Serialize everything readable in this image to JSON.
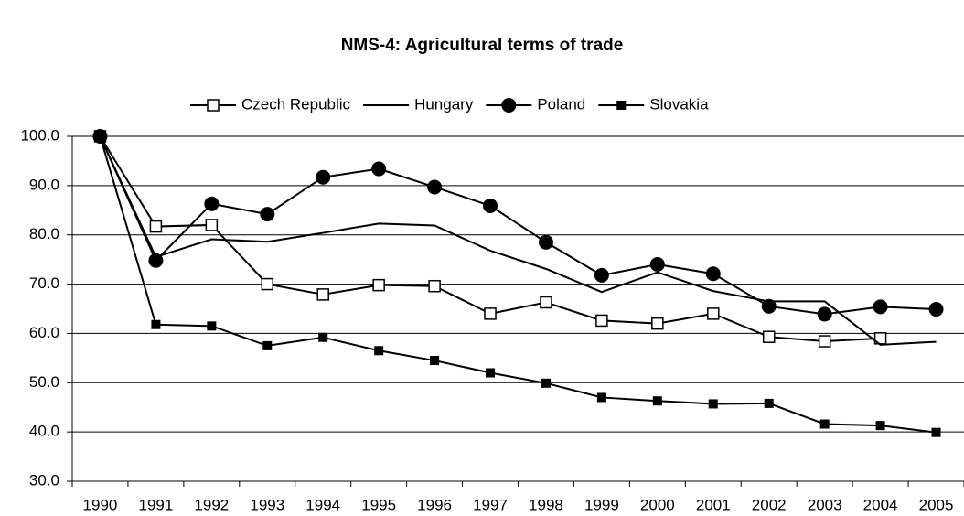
{
  "chart_data": {
    "type": "line",
    "title": "NMS-4: Agricultural terms of trade",
    "categories": [
      "1990",
      "1991",
      "1992",
      "1993",
      "1994",
      "1995",
      "1996",
      "1997",
      "1998",
      "1999",
      "2000",
      "2001",
      "2002",
      "2003",
      "2004",
      "2005"
    ],
    "series": [
      {
        "name": "Czech Republic",
        "color": "#000000",
        "marker": "open-square",
        "values": [
          100,
          81.7,
          82.0,
          70.0,
          67.9,
          69.8,
          69.6,
          64.0,
          66.3,
          62.6,
          62.0,
          64.0,
          59.3,
          58.4,
          59.0,
          null
        ]
      },
      {
        "name": "Hungary",
        "color": "#000000",
        "marker": "none",
        "values": [
          100,
          75.5,
          79.1,
          78.6,
          80.4,
          82.3,
          81.9,
          76.8,
          73.1,
          68.4,
          72.4,
          68.6,
          66.5,
          66.5,
          57.7,
          58.3
        ]
      },
      {
        "name": "Poland",
        "color": "#000000",
        "marker": "circle",
        "values": [
          100,
          74.8,
          86.3,
          84.2,
          91.7,
          93.4,
          89.7,
          85.9,
          78.5,
          71.8,
          74.0,
          72.1,
          65.5,
          63.9,
          65.4,
          64.9
        ]
      },
      {
        "name": "Slovakia",
        "color": "#000000",
        "marker": "square",
        "values": [
          100,
          61.8,
          61.5,
          57.5,
          59.2,
          56.5,
          54.5,
          52.0,
          49.9,
          47.0,
          46.3,
          45.7,
          45.8,
          41.6,
          41.3,
          39.9
        ]
      }
    ],
    "ylim": [
      30,
      100
    ],
    "yticks": [
      {
        "value": 30,
        "label": "30.0"
      },
      {
        "value": 40,
        "label": "40.0"
      },
      {
        "value": 50,
        "label": "50.0"
      },
      {
        "value": 60,
        "label": "60.0"
      },
      {
        "value": 70,
        "label": "70.0"
      },
      {
        "value": 80,
        "label": "80.0"
      },
      {
        "value": 90,
        "label": "90.0"
      },
      {
        "value": 100,
        "label": "100.0"
      }
    ],
    "grid": true,
    "legend": "top"
  }
}
